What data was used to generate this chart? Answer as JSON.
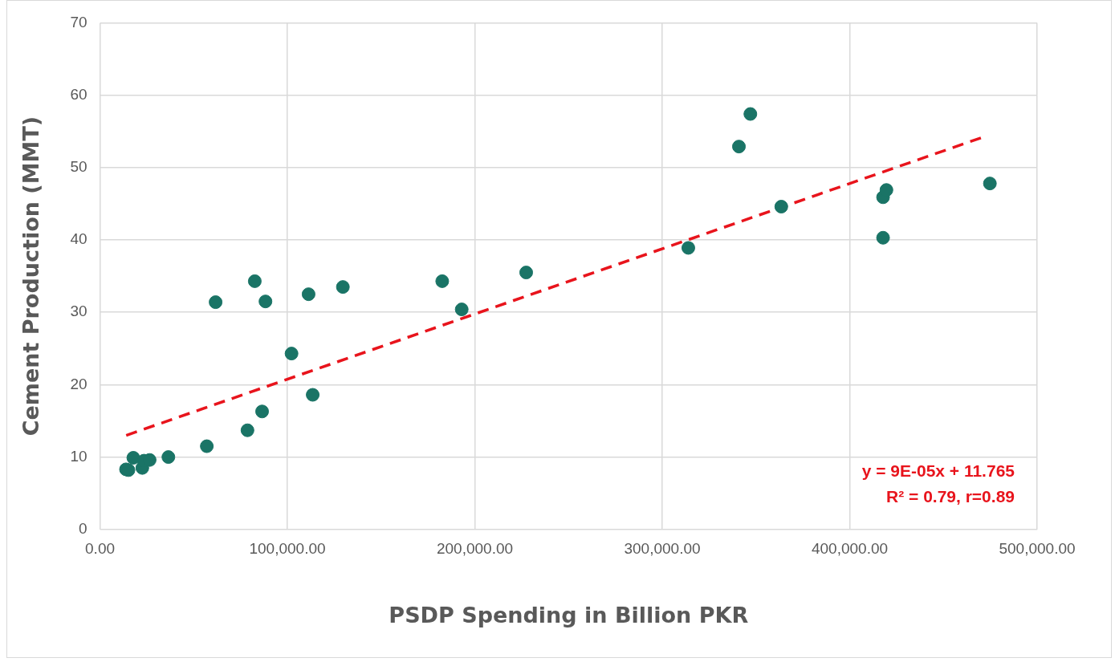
{
  "chart_data": {
    "type": "scatter",
    "xlabel": "PSDP Spending in Billion PKR",
    "ylabel": "Cement Production (MMT)",
    "xlim": [
      0,
      500000
    ],
    "ylim": [
      0,
      70
    ],
    "xticks": [
      {
        "value": 0,
        "label": "0.00"
      },
      {
        "value": 100000,
        "label": "100,000.00"
      },
      {
        "value": 200000,
        "label": "200,000.00"
      },
      {
        "value": 300000,
        "label": "300,000.00"
      },
      {
        "value": 400000,
        "label": "400,000.00"
      },
      {
        "value": 500000,
        "label": "500,000.00"
      }
    ],
    "yticks": [
      0,
      10,
      20,
      30,
      40,
      50,
      60,
      70
    ],
    "grid": true,
    "legend": false,
    "marker": "circle",
    "annotations": [
      "y = 9E-05x + 11.765",
      "R² = 0.79, r=0.89"
    ],
    "series": [
      {
        "color": "#1a7466",
        "x": [
          13900,
          15200,
          17800,
          22600,
          23500,
          26500,
          36500,
          57000,
          61700,
          78700,
          82600,
          86500,
          88300,
          102200,
          111300,
          113500,
          129600,
          182600,
          193000,
          227400,
          313900,
          340900,
          347000,
          363500,
          417800,
          417800,
          419600,
          474800
        ],
        "values": [
          8.3,
          8.2,
          9.9,
          8.5,
          9.5,
          9.6,
          10.0,
          11.5,
          31.4,
          13.7,
          34.3,
          16.3,
          31.5,
          24.3,
          32.5,
          18.6,
          33.5,
          34.3,
          30.4,
          35.5,
          38.9,
          52.9,
          57.4,
          44.6,
          40.3,
          45.9,
          46.9,
          47.8
        ]
      },
      {
        "type": "line",
        "color": "#e8141c",
        "line_style": "dashed",
        "marker": "none",
        "x": [
          14000,
          470000
        ],
        "values": [
          13.0,
          54.1
        ]
      }
    ]
  }
}
